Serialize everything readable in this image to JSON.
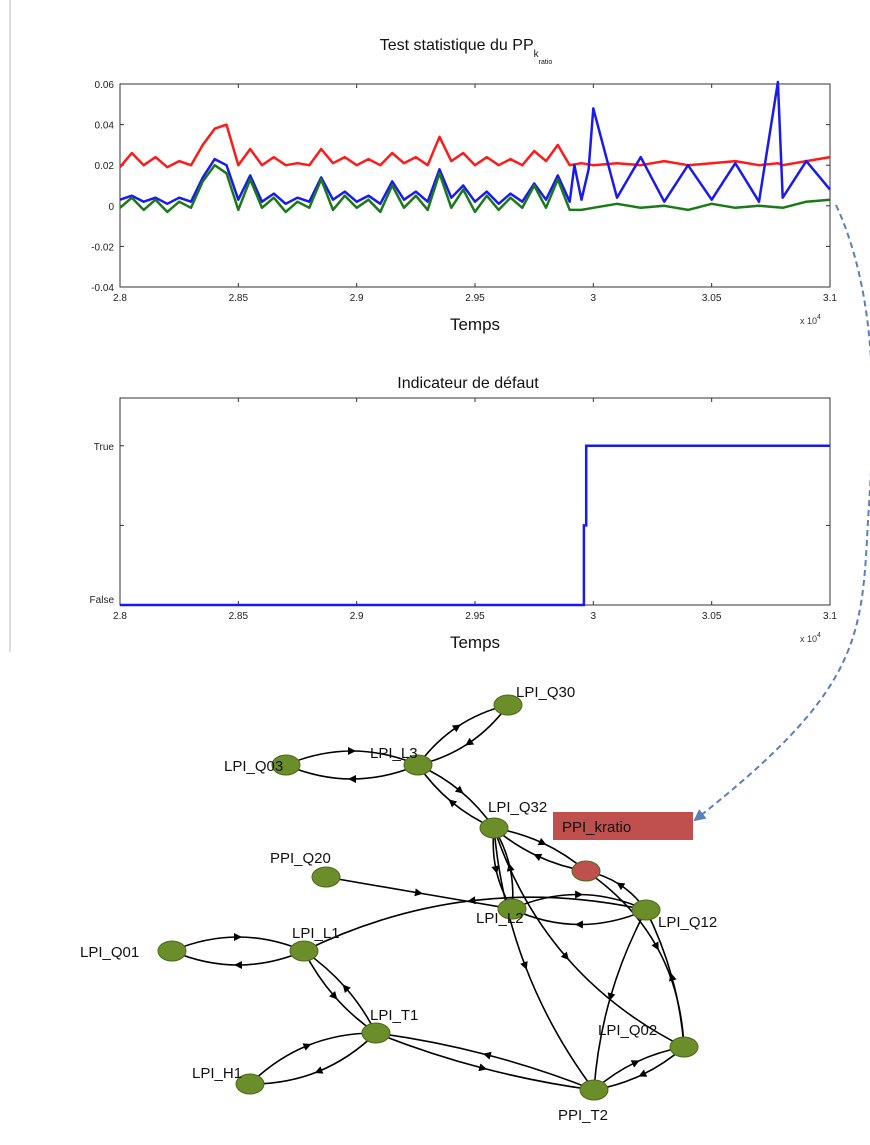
{
  "chart_data": [
    {
      "type": "line",
      "title": "Test statistique du PP",
      "title_subscript": "k",
      "title_subsubscript": "ratio",
      "xlabel": "Temps",
      "x_multiplier": "x 10",
      "x_multiplier_exp": "4",
      "xlim": [
        2.8,
        3.1
      ],
      "ylim": [
        -0.04,
        0.06
      ],
      "xticks": [
        2.8,
        2.85,
        2.9,
        2.95,
        3.0,
        3.05,
        3.1
      ],
      "xtick_labels": [
        "2.8",
        "2.85",
        "2.9",
        "2.95",
        "3",
        "3.05",
        "3.1"
      ],
      "yticks": [
        -0.04,
        -0.02,
        0,
        0.02,
        0.04,
        0.06
      ],
      "ytick_labels": [
        "-0.04",
        "-0.02",
        "0",
        "0.02",
        "0.04",
        "0.06"
      ],
      "series": [
        {
          "color": "#ff1a1a",
          "x": [
            2.8,
            2.805,
            2.81,
            2.815,
            2.82,
            2.825,
            2.83,
            2.835,
            2.84,
            2.845,
            2.85,
            2.855,
            2.86,
            2.865,
            2.87,
            2.875,
            2.88,
            2.885,
            2.89,
            2.895,
            2.9,
            2.905,
            2.91,
            2.915,
            2.92,
            2.925,
            2.93,
            2.935,
            2.94,
            2.945,
            2.95,
            2.955,
            2.96,
            2.965,
            2.97,
            2.975,
            2.98,
            2.985,
            2.99,
            2.995,
            3.0,
            3.01,
            3.02,
            3.03,
            3.04,
            3.05,
            3.06,
            3.07,
            3.078,
            3.08,
            3.09,
            3.1
          ],
          "y": [
            0.019,
            0.026,
            0.02,
            0.024,
            0.019,
            0.022,
            0.02,
            0.03,
            0.038,
            0.04,
            0.02,
            0.028,
            0.02,
            0.024,
            0.02,
            0.021,
            0.02,
            0.028,
            0.021,
            0.024,
            0.02,
            0.023,
            0.02,
            0.026,
            0.021,
            0.024,
            0.02,
            0.034,
            0.022,
            0.026,
            0.02,
            0.024,
            0.02,
            0.023,
            0.02,
            0.027,
            0.022,
            0.03,
            0.02,
            0.021,
            0.02,
            0.021,
            0.02,
            0.022,
            0.02,
            0.021,
            0.022,
            0.02,
            0.021,
            0.02,
            0.022,
            0.024
          ]
        },
        {
          "color": "#1a1aee",
          "x": [
            2.8,
            2.805,
            2.81,
            2.815,
            2.82,
            2.825,
            2.83,
            2.835,
            2.84,
            2.845,
            2.85,
            2.855,
            2.86,
            2.865,
            2.87,
            2.875,
            2.88,
            2.885,
            2.89,
            2.895,
            2.9,
            2.905,
            2.91,
            2.915,
            2.92,
            2.925,
            2.93,
            2.935,
            2.94,
            2.945,
            2.95,
            2.955,
            2.96,
            2.965,
            2.97,
            2.975,
            2.98,
            2.985,
            2.99,
            2.992,
            2.995,
            2.998,
            3.0,
            3.01,
            3.02,
            3.03,
            3.04,
            3.05,
            3.06,
            3.07,
            3.078,
            3.08,
            3.09,
            3.1
          ],
          "y": [
            0.003,
            0.005,
            0.002,
            0.004,
            0.001,
            0.004,
            0.002,
            0.014,
            0.023,
            0.02,
            0.003,
            0.015,
            0.002,
            0.006,
            0.001,
            0.004,
            0.002,
            0.014,
            0.003,
            0.007,
            0.002,
            0.005,
            0.001,
            0.012,
            0.003,
            0.007,
            0.002,
            0.018,
            0.004,
            0.01,
            0.002,
            0.007,
            0.001,
            0.006,
            0.002,
            0.011,
            0.003,
            0.015,
            0.002,
            0.02,
            0.003,
            0.018,
            0.048,
            0.004,
            0.024,
            0.002,
            0.02,
            0.003,
            0.021,
            0.002,
            0.061,
            0.004,
            0.022,
            0.008
          ]
        },
        {
          "color": "#1a7a1a",
          "x": [
            2.8,
            2.805,
            2.81,
            2.815,
            2.82,
            2.825,
            2.83,
            2.835,
            2.84,
            2.845,
            2.85,
            2.855,
            2.86,
            2.865,
            2.87,
            2.875,
            2.88,
            2.885,
            2.89,
            2.895,
            2.9,
            2.905,
            2.91,
            2.915,
            2.92,
            2.925,
            2.93,
            2.935,
            2.94,
            2.945,
            2.95,
            2.955,
            2.96,
            2.965,
            2.97,
            2.975,
            2.98,
            2.985,
            2.99,
            2.995,
            3.0,
            3.01,
            3.02,
            3.03,
            3.04,
            3.05,
            3.06,
            3.07,
            3.08,
            3.09,
            3.1
          ],
          "y": [
            -0.001,
            0.004,
            -0.002,
            0.003,
            -0.003,
            0.002,
            -0.001,
            0.012,
            0.02,
            0.016,
            -0.002,
            0.013,
            -0.001,
            0.004,
            -0.003,
            0.002,
            -0.001,
            0.013,
            -0.002,
            0.005,
            -0.001,
            0.003,
            -0.003,
            0.01,
            -0.001,
            0.005,
            -0.002,
            0.016,
            -0.001,
            0.008,
            -0.003,
            0.005,
            -0.002,
            0.004,
            -0.001,
            0.01,
            -0.001,
            0.013,
            -0.002,
            -0.002,
            -0.001,
            0.001,
            -0.001,
            0.0,
            -0.002,
            0.001,
            -0.001,
            0.0,
            -0.001,
            0.002,
            0.003
          ]
        }
      ]
    },
    {
      "type": "line",
      "title": "Indicateur de défaut",
      "xlabel": "Temps",
      "x_multiplier": "x 10",
      "x_multiplier_exp": "4",
      "xlim": [
        2.8,
        3.1
      ],
      "ylim": [
        0,
        1.3
      ],
      "xticks": [
        2.8,
        2.85,
        2.9,
        2.95,
        3.0,
        3.05,
        3.1
      ],
      "xtick_labels": [
        "2.8",
        "2.85",
        "2.9",
        "2.95",
        "3",
        "3.05",
        "3.1"
      ],
      "ytick_labels": [
        "False",
        "True"
      ],
      "series": [
        {
          "color": "#1a1aee",
          "x": [
            2.8,
            2.996,
            2.996,
            2.997,
            2.997,
            3.1
          ],
          "y": [
            0,
            0,
            0.5,
            0.5,
            1,
            1
          ]
        }
      ]
    }
  ],
  "graph": {
    "nodes": [
      {
        "id": "LPI_Q30",
        "label": "LPI_Q30",
        "color": "#6b8e2a"
      },
      {
        "id": "LPI_L3",
        "label": "LPI_L3",
        "color": "#6b8e2a"
      },
      {
        "id": "LPI_Q03",
        "label": "LPI_Q03",
        "color": "#6b8e2a"
      },
      {
        "id": "LPI_Q32",
        "label": "LPI_Q32",
        "color": "#6b8e2a"
      },
      {
        "id": "PPI_kratio",
        "label": "",
        "color": "#c0504d"
      },
      {
        "id": "PPI_Q20",
        "label": "PPI_Q20",
        "color": "#6b8e2a"
      },
      {
        "id": "LPI_L2",
        "label": "LPI_L2",
        "color": "#6b8e2a"
      },
      {
        "id": "LPI_Q12",
        "label": "LPI_Q12",
        "color": "#6b8e2a"
      },
      {
        "id": "LPI_Q01",
        "label": "LPI_Q01",
        "color": "#6b8e2a"
      },
      {
        "id": "LPI_L1",
        "label": "LPI_L1",
        "color": "#6b8e2a"
      },
      {
        "id": "LPI_T1",
        "label": "LPI_T1",
        "color": "#6b8e2a"
      },
      {
        "id": "LPI_Q02",
        "label": "LPI_Q02",
        "color": "#6b8e2a"
      },
      {
        "id": "LPI_H1",
        "label": "LPI_H1",
        "color": "#6b8e2a"
      },
      {
        "id": "PPI_T2",
        "label": "PPI_T2",
        "color": "#6b8e2a"
      }
    ],
    "highlight_label": "PPI_kratio",
    "highlight_color": "#c0504d"
  }
}
